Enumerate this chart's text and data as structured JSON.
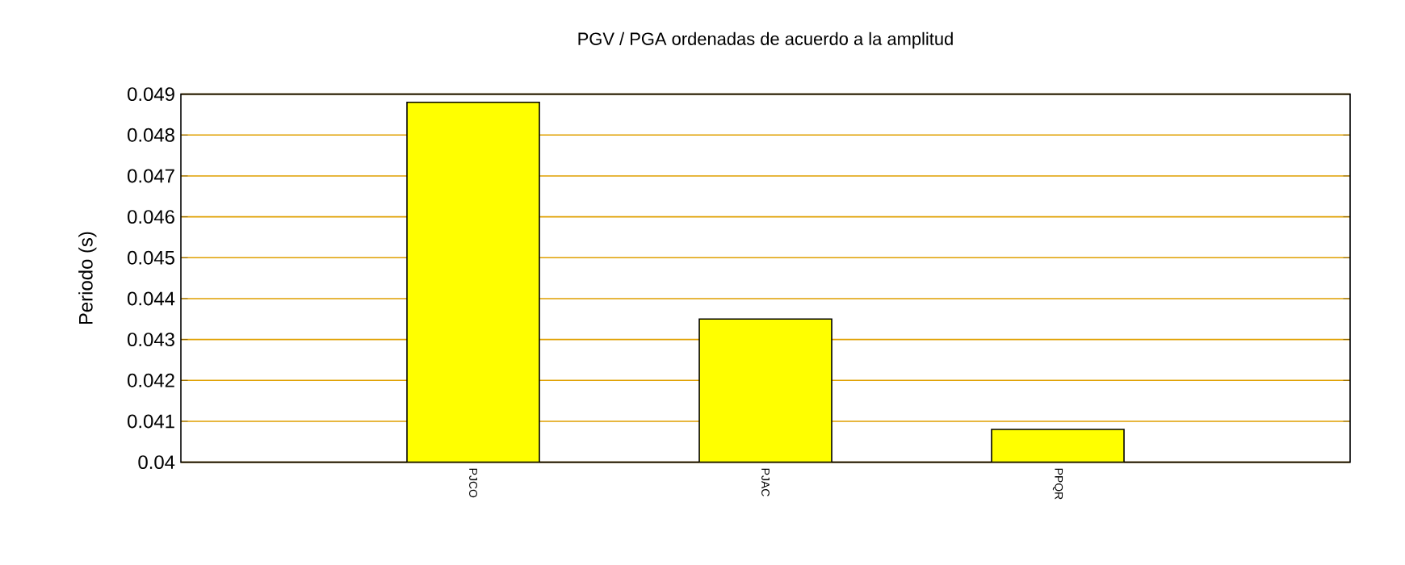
{
  "chart_data": {
    "type": "bar",
    "title": "PGV / PGA ordenadas de acuerdo a la amplitud",
    "ylabel": "Periodo (s)",
    "categories": [
      "PJCO",
      "PJAC",
      "PPQR"
    ],
    "values": [
      0.0488,
      0.0435,
      0.0408
    ],
    "color": "#ffff00",
    "ylim": [
      0.04,
      0.049
    ],
    "yticks": [
      0.04,
      0.041,
      0.042,
      0.043,
      0.044,
      0.045,
      0.046,
      0.047,
      0.048,
      0.049
    ],
    "grid": "y"
  }
}
